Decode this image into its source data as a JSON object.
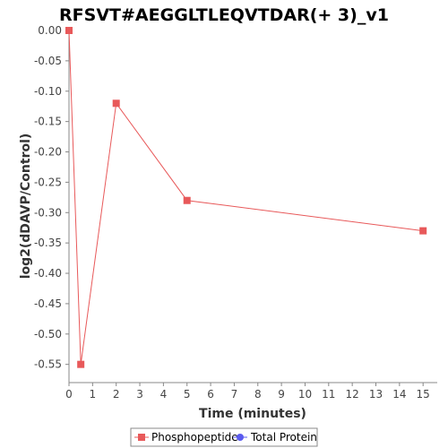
{
  "chart_data": {
    "type": "line",
    "title": "RFSVT#AEGGLTLEQVTDAR(+ 3)_v1",
    "xlabel": "Time (minutes)",
    "ylabel": "log2(dDAVP/Control)",
    "xlim": [
      0,
      15.6
    ],
    "ylim": [
      -0.58,
      0.0
    ],
    "x_ticks": [
      0,
      1,
      2,
      3,
      4,
      5,
      6,
      7,
      8,
      9,
      10,
      11,
      12,
      13,
      14,
      15
    ],
    "y_ticks": [
      0.0,
      -0.05,
      -0.1,
      -0.15,
      -0.2,
      -0.25,
      -0.3,
      -0.35,
      -0.4,
      -0.45,
      -0.5,
      -0.55
    ],
    "y_tick_labels": [
      "0.00",
      "-0.05",
      "-0.10",
      "-0.15",
      "-0.20",
      "-0.25",
      "-0.30",
      "-0.35",
      "-0.40",
      "-0.45",
      "-0.50",
      "-0.55"
    ],
    "grid": false,
    "legend_position": "bottom-center",
    "series": [
      {
        "name": "Phosphopeptide",
        "color": "#e8595a",
        "marker": "square",
        "x": [
          0,
          0.5,
          2,
          5,
          15
        ],
        "y": [
          0.0,
          -0.55,
          -0.12,
          -0.28,
          -0.33
        ]
      },
      {
        "name": "Total Protein",
        "color": "#5b5bef",
        "marker": "circle",
        "x": [],
        "y": []
      }
    ]
  }
}
